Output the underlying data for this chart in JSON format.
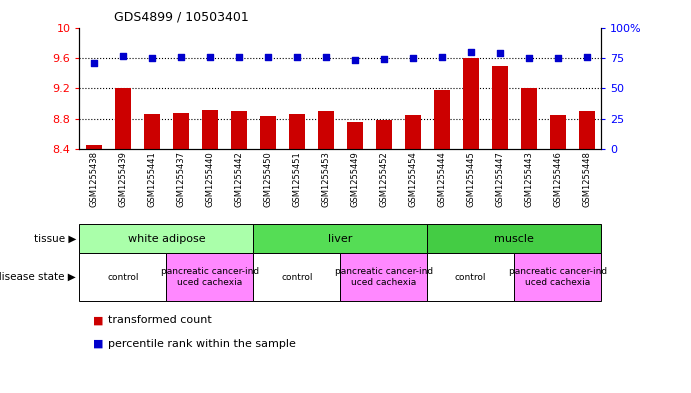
{
  "title": "GDS4899 / 10503401",
  "samples": [
    "GSM1255438",
    "GSM1255439",
    "GSM1255441",
    "GSM1255437",
    "GSM1255440",
    "GSM1255442",
    "GSM1255450",
    "GSM1255451",
    "GSM1255453",
    "GSM1255449",
    "GSM1255452",
    "GSM1255454",
    "GSM1255444",
    "GSM1255445",
    "GSM1255447",
    "GSM1255443",
    "GSM1255446",
    "GSM1255448"
  ],
  "transformed_count": [
    8.46,
    9.2,
    8.87,
    8.88,
    8.92,
    8.91,
    8.84,
    8.86,
    8.9,
    8.76,
    8.78,
    8.85,
    9.18,
    9.6,
    9.49,
    9.21,
    8.85,
    8.9
  ],
  "percentile_rank": [
    71,
    77,
    75,
    76,
    76,
    76,
    76,
    76,
    76,
    73,
    74,
    75,
    76,
    80,
    79,
    75,
    75,
    76
  ],
  "ylim_left": [
    8.4,
    10.0
  ],
  "ylim_right": [
    0,
    100
  ],
  "yticks_left": [
    8.4,
    8.8,
    9.2,
    9.6,
    10.0
  ],
  "ytick_labels_left": [
    "8.4",
    "8.8",
    "9.2",
    "9.6",
    "10"
  ],
  "yticks_right": [
    0,
    25,
    50,
    75,
    100
  ],
  "ytick_labels_right": [
    "0",
    "25",
    "50",
    "75",
    "100%"
  ],
  "bar_color": "#cc0000",
  "dot_color": "#0000cc",
  "tissue_groups": [
    {
      "label": "white adipose",
      "start": 0,
      "end": 6,
      "color": "#aaffaa"
    },
    {
      "label": "liver",
      "start": 6,
      "end": 12,
      "color": "#55dd55"
    },
    {
      "label": "muscle",
      "start": 12,
      "end": 18,
      "color": "#44cc44"
    }
  ],
  "disease_groups": [
    {
      "label": "control",
      "start": 0,
      "end": 3,
      "color": "#ffffff"
    },
    {
      "label": "pancreatic cancer-ind\nuced cachexia",
      "start": 3,
      "end": 6,
      "color": "#ff88ff"
    },
    {
      "label": "control",
      "start": 6,
      "end": 9,
      "color": "#ffffff"
    },
    {
      "label": "pancreatic cancer-ind\nuced cachexia",
      "start": 9,
      "end": 12,
      "color": "#ff88ff"
    },
    {
      "label": "control",
      "start": 12,
      "end": 15,
      "color": "#ffffff"
    },
    {
      "label": "pancreatic cancer-ind\nuced cachexia",
      "start": 15,
      "end": 18,
      "color": "#ff88ff"
    }
  ],
  "tissue_label": "tissue",
  "disease_label": "disease state",
  "legend_bar_label": "transformed count",
  "legend_dot_label": "percentile rank within the sample",
  "sample_bg_color": "#cccccc",
  "grid_yticks": [
    8.8,
    9.2,
    9.6
  ],
  "bar_width": 0.55
}
